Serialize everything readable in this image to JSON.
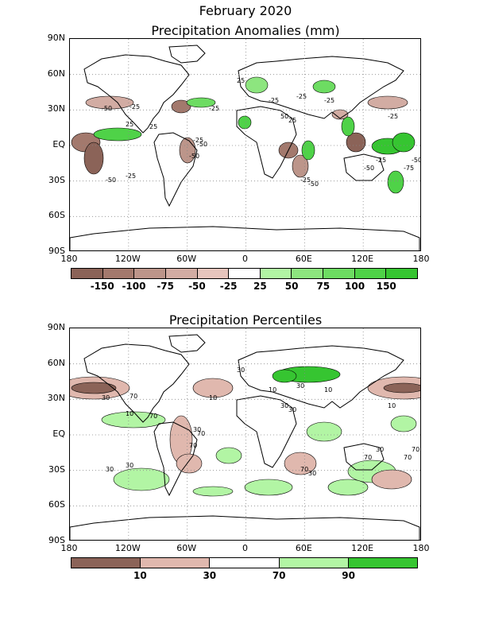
{
  "title": "February 2020",
  "panels": [
    {
      "title": "Precipitation Anomalies (mm)",
      "y_labels": [
        "90N",
        "60N",
        "30N",
        "EQ",
        "30S",
        "60S",
        "90S"
      ],
      "x_labels": [
        "180",
        "120W",
        "60W",
        "0",
        "60E",
        "120E",
        "180"
      ],
      "colorbar": {
        "colors": [
          "#8b6358",
          "#a3796d",
          "#bc958a",
          "#d2aca3",
          "#e6c5bd",
          "#ffffff",
          "#b2f5a4",
          "#8de57f",
          "#6ddc62",
          "#4fd248",
          "#36c531"
        ],
        "labels": [
          "-150",
          "-100",
          "-75",
          "-50",
          "-25",
          "25",
          "50",
          "75",
          "100",
          "150"
        ]
      },
      "contour_labels": [
        "-50",
        "-25",
        "-25",
        "-25",
        "25",
        "25",
        "-50",
        "-25",
        "-50",
        "-50",
        "-25",
        "25",
        "-50",
        "-25",
        "-25",
        "-50",
        "-25",
        "-75",
        "-50",
        "-25",
        "50",
        "25",
        "-25"
      ]
    },
    {
      "title": "Precipitation Percentiles",
      "y_labels": [
        "90N",
        "60N",
        "30N",
        "EQ",
        "30S",
        "60S",
        "90S"
      ],
      "x_labels": [
        "180",
        "120W",
        "60W",
        "0",
        "60E",
        "120E",
        "180"
      ],
      "colorbar": {
        "colors": [
          "#8b6358",
          "#e0b8ae",
          "#ffffff",
          "#b2f5a4",
          "#36c531"
        ],
        "labels": [
          "10",
          "30",
          "70",
          "90"
        ]
      },
      "contour_labels": [
        "30",
        "70",
        "10",
        "30",
        "10",
        "70",
        "30",
        "30",
        "70",
        "70",
        "10",
        "30",
        "70",
        "30",
        "70",
        "30",
        "10",
        "70",
        "70",
        "30",
        "30",
        "30",
        "10"
      ]
    }
  ]
}
